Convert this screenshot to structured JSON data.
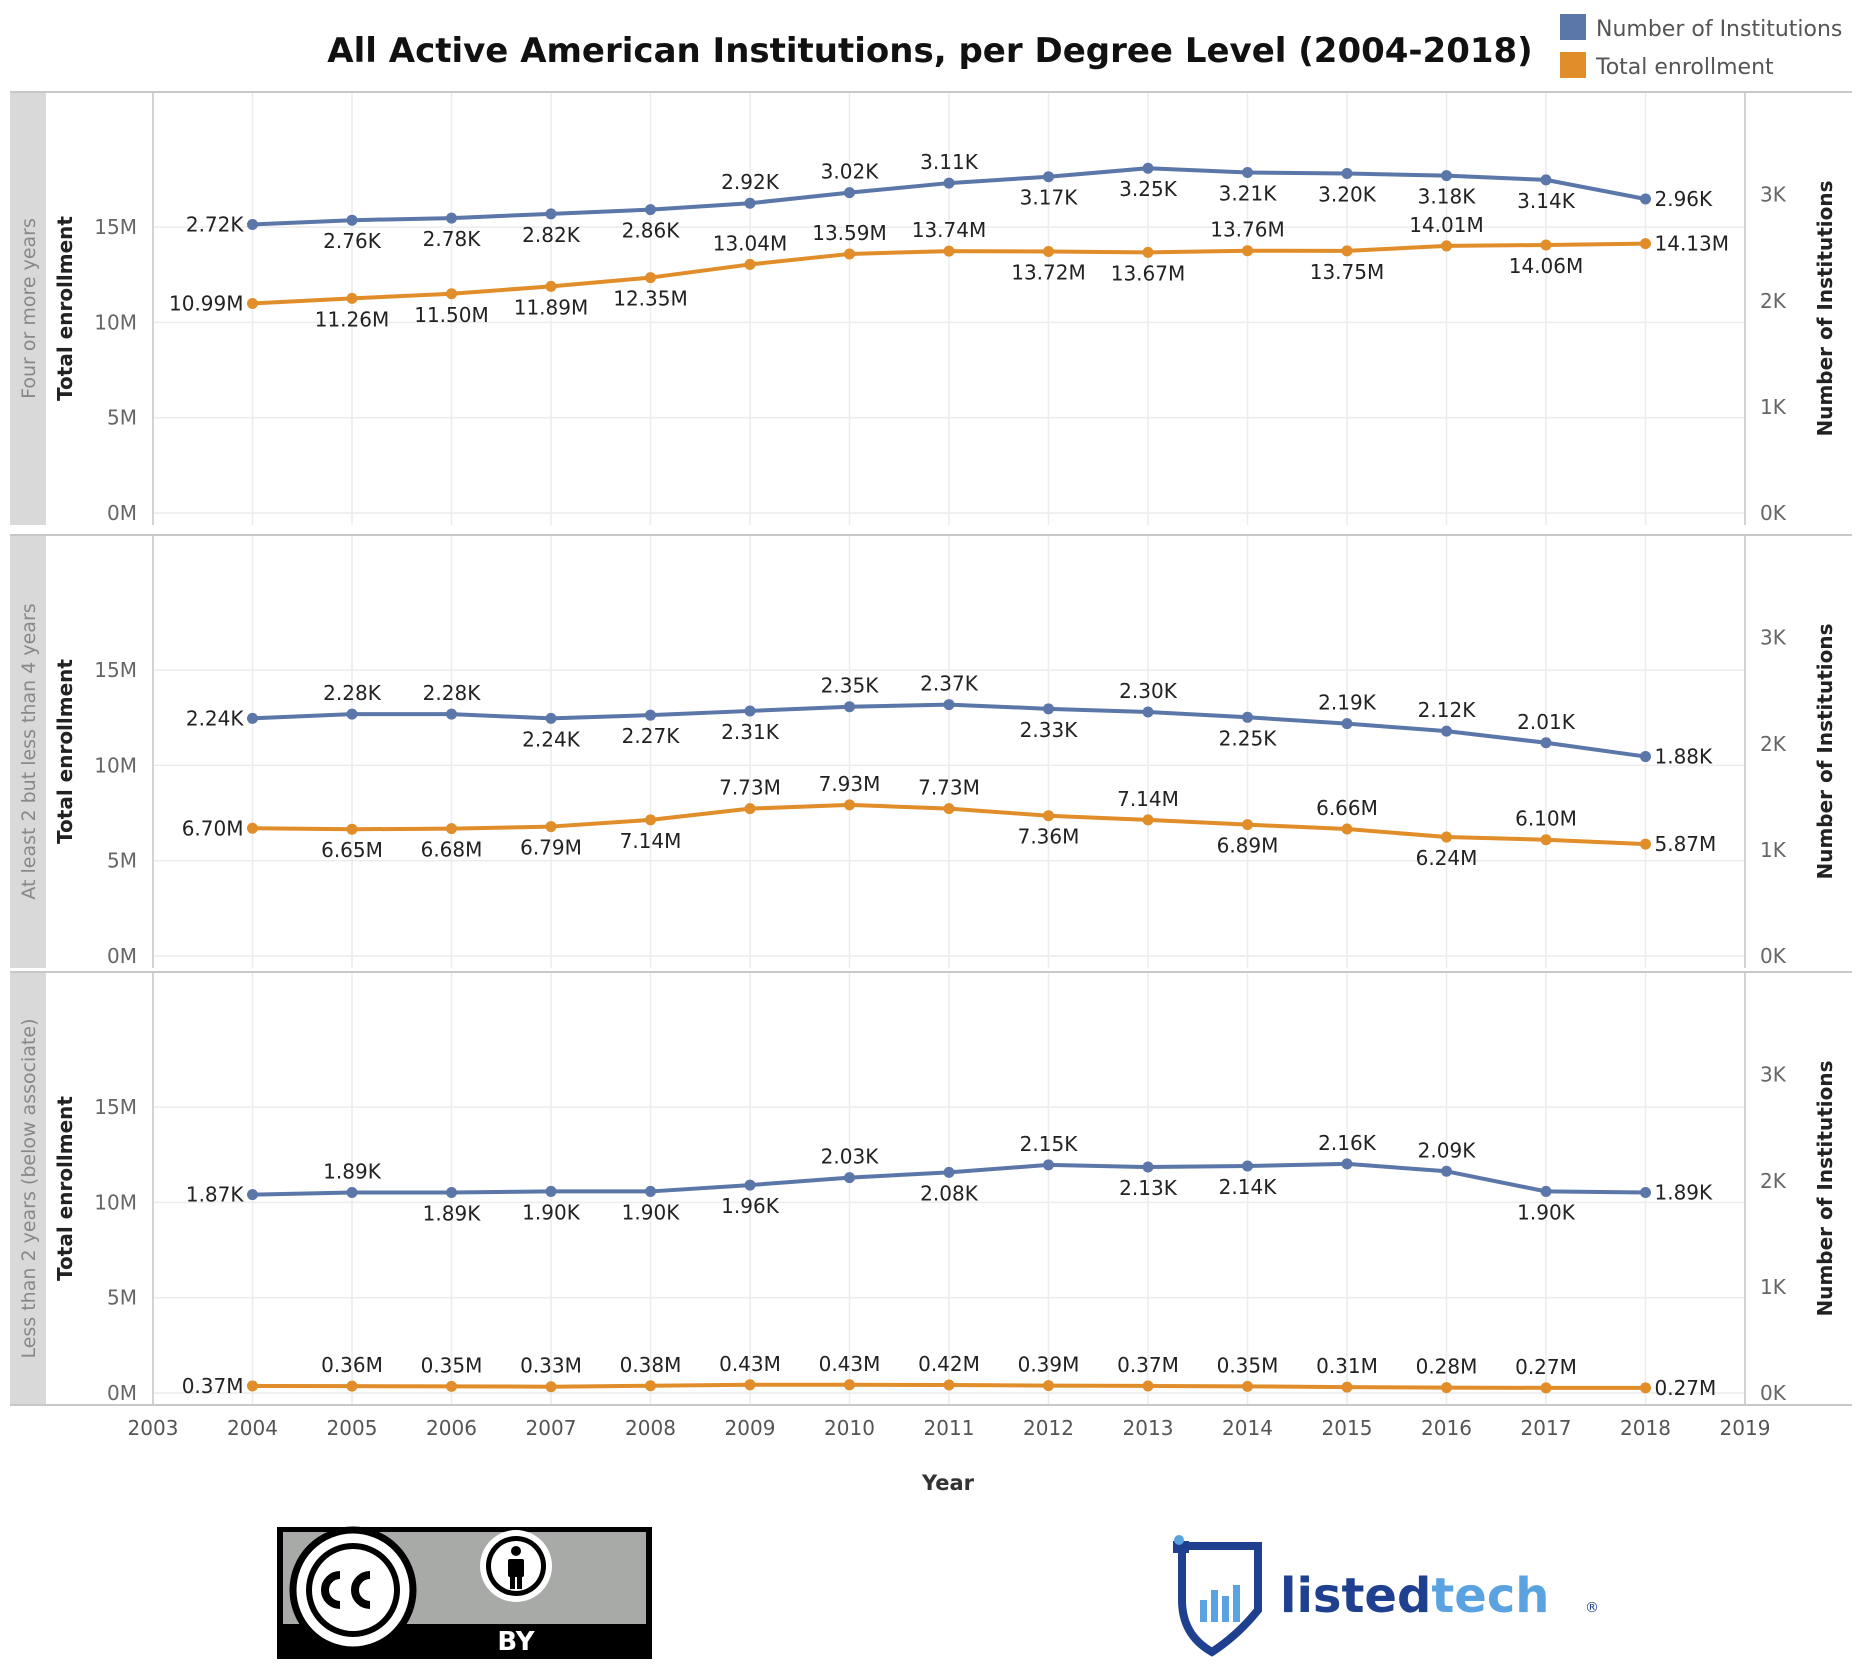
{
  "colors": {
    "institutions": "#5b76a9",
    "enrollment": "#e08d2a",
    "grid": "#ececec",
    "panel_border": "#c8c8c8",
    "row_band": "#d9d9d9"
  },
  "icons": [
    "cc-icon",
    "attribution-icon",
    "listedtech-shield-icon"
  ],
  "cc_badge": {
    "by_text": "BY"
  },
  "brand": {
    "part1": "listed",
    "part2": "tech",
    "mark": "®"
  },
  "chart_data": {
    "type": "line",
    "title": "All Active American Institutions, per Degree Level (2004-2018)",
    "xlabel": "Year",
    "x_ticks": [
      "2003",
      "2004",
      "2005",
      "2006",
      "2007",
      "2008",
      "2009",
      "2010",
      "2011",
      "2012",
      "2013",
      "2014",
      "2015",
      "2016",
      "2017",
      "2018",
      "2019"
    ],
    "xlim": [
      2003,
      2019
    ],
    "x": [
      2004,
      2005,
      2006,
      2007,
      2008,
      2009,
      2010,
      2011,
      2012,
      2013,
      2014,
      2015,
      2016,
      2017,
      2018
    ],
    "legend": {
      "placement": "top-right",
      "entries": [
        "Number of Institutions",
        "Total enrollment"
      ]
    },
    "left_axis": {
      "label": "Total enrollment",
      "ylim": [
        0,
        19.2
      ],
      "ticks": [
        "0M",
        "5M",
        "10M",
        "15M"
      ],
      "tick_values": [
        0,
        5,
        10,
        15
      ],
      "unit": "M"
    },
    "right_axis": {
      "label": "Number of Institutions",
      "ylim": [
        0,
        3.45
      ],
      "ticks": [
        "0K",
        "1K",
        "2K",
        "3K"
      ],
      "tick_values": [
        0,
        1,
        2,
        3
      ],
      "unit": "K"
    },
    "grid": true,
    "panels": [
      {
        "row_label": "Four or more years",
        "series": [
          {
            "name": "Number of Institutions",
            "axis": "right",
            "values": [
              2.72,
              2.76,
              2.78,
              2.82,
              2.86,
              2.92,
              3.02,
              3.11,
              3.17,
              3.25,
              3.21,
              3.2,
              3.18,
              3.14,
              2.96
            ],
            "labels": [
              "2.72K",
              "2.76K",
              "2.78K",
              "2.82K",
              "2.86K",
              "2.92K",
              "3.02K",
              "3.11K",
              "3.17K",
              "3.25K",
              "3.21K",
              "3.20K",
              "3.18K",
              "3.14K",
              "2.96K"
            ]
          },
          {
            "name": "Total enrollment",
            "axis": "left",
            "values": [
              10.99,
              11.26,
              11.5,
              11.89,
              12.35,
              13.04,
              13.59,
              13.74,
              13.72,
              13.67,
              13.76,
              13.75,
              14.01,
              14.06,
              14.13
            ],
            "labels": [
              "10.99M",
              "11.26M",
              "11.50M",
              "11.89M",
              "12.35M",
              "13.04M",
              "13.59M",
              "13.74M",
              "13.72M",
              "13.67M",
              "13.76M",
              "13.75M",
              "14.01M",
              "14.06M",
              "14.13M"
            ]
          }
        ]
      },
      {
        "row_label": "At least 2 but less than 4 years",
        "series": [
          {
            "name": "Number of Institutions",
            "axis": "right",
            "values": [
              2.24,
              2.28,
              2.28,
              2.24,
              2.27,
              2.31,
              2.35,
              2.37,
              2.33,
              2.3,
              2.25,
              2.19,
              2.12,
              2.01,
              1.88
            ],
            "labels": [
              "2.24K",
              "2.28K",
              "2.28K",
              "2.24K",
              "2.27K",
              "2.31K",
              "2.35K",
              "2.37K",
              "2.33K",
              "2.30K",
              "2.25K",
              "2.19K",
              "2.12K",
              "2.01K",
              "1.88K"
            ]
          },
          {
            "name": "Total enrollment",
            "axis": "left",
            "values": [
              6.7,
              6.65,
              6.68,
              6.79,
              7.14,
              7.73,
              7.93,
              7.73,
              7.36,
              7.14,
              6.89,
              6.66,
              6.24,
              6.1,
              5.87
            ],
            "labels": [
              "6.70M",
              "6.65M",
              "6.68M",
              "6.79M",
              "7.14M",
              "7.73M",
              "7.93M",
              "7.73M",
              "7.36M",
              "7.14M",
              "6.89M",
              "6.66M",
              "6.24M",
              "6.10M",
              "5.87M"
            ]
          }
        ]
      },
      {
        "row_label": "Less than 2 years (below associate)",
        "series": [
          {
            "name": "Number of Institutions",
            "axis": "right",
            "values": [
              1.87,
              1.89,
              1.89,
              1.9,
              1.9,
              1.96,
              2.03,
              2.08,
              2.15,
              2.13,
              2.14,
              2.16,
              2.09,
              1.9,
              1.89
            ],
            "labels": [
              "1.87K",
              "1.89K",
              "1.89K",
              "1.90K",
              "1.90K",
              "1.96K",
              "2.03K",
              "2.08K",
              "2.15K",
              "2.13K",
              "2.14K",
              "2.16K",
              "2.09K",
              "1.90K",
              "1.89K"
            ]
          },
          {
            "name": "Total enrollment",
            "axis": "left",
            "values": [
              0.37,
              0.36,
              0.35,
              0.33,
              0.38,
              0.43,
              0.43,
              0.42,
              0.39,
              0.37,
              0.35,
              0.31,
              0.28,
              0.27,
              0.27
            ],
            "labels": [
              "0.37M",
              "0.36M",
              "0.35M",
              "0.33M",
              "0.38M",
              "0.43M",
              "0.43M",
              "0.42M",
              "0.39M",
              "0.37M",
              "0.35M",
              "0.31M",
              "0.28M",
              "0.27M",
              "0.27M"
            ]
          }
        ]
      }
    ]
  }
}
